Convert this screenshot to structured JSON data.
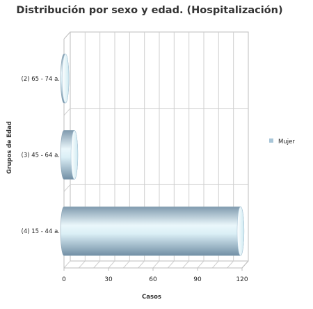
{
  "chart_data": {
    "type": "bar",
    "orientation": "horizontal",
    "title": "Distribución por sexo y edad. (Hospitalización)",
    "xlabel": "Casos",
    "ylabel": "Grupos de Edad",
    "categories": [
      "(2) 65 - 74 a.",
      "(3) 45 - 64 a.",
      "(4) 15 - 44 a."
    ],
    "series": [
      {
        "name": "Mujer",
        "values": [
          1,
          7,
          119
        ]
      }
    ],
    "xlim": [
      0,
      120
    ],
    "xticks": [
      0,
      30,
      60,
      90,
      120
    ],
    "grid": true,
    "legend_position": "right",
    "style": "3d-cylinder",
    "colors": {
      "bar_dark": "#7f9aae",
      "bar_light": "#eaf7fb",
      "legend_swatch": "#a9c6d8"
    }
  }
}
